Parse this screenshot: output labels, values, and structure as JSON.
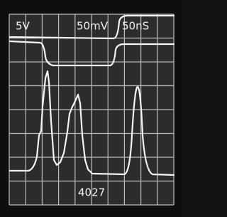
{
  "labels": {
    "channel1": "5V",
    "channel2": "50mV",
    "timebase": "50nS"
  },
  "caption": "4027"
}
